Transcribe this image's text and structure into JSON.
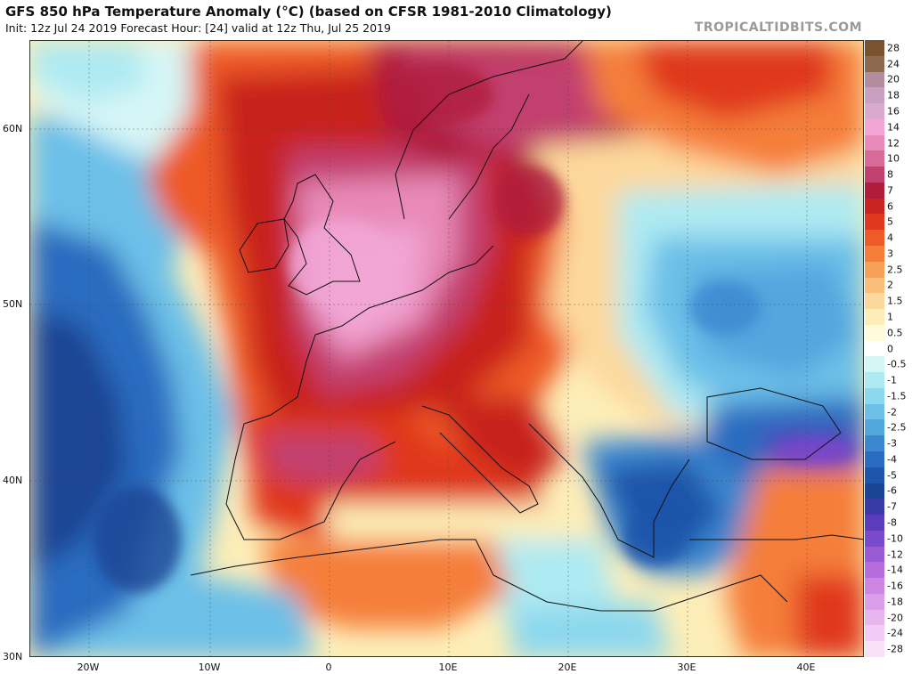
{
  "header": {
    "title": "GFS 850 hPa Temperature Anomaly (°C) (based on CFSR 1981-2010 Climatology)",
    "subtitle": "Init: 12z Jul 24 2019   Forecast Hour: [24]   valid at 12z Thu, Jul 25 2019",
    "brand": "TROPICALTIDBITS.COM"
  },
  "map": {
    "lat_labels": [
      "60N",
      "50N",
      "40N",
      "30N"
    ],
    "lon_labels": [
      "20W",
      "10W",
      "0",
      "10E",
      "20E",
      "30E",
      "40E"
    ]
  },
  "colorbar": {
    "levels": [
      {
        "label": "28",
        "color": "#7a5230"
      },
      {
        "label": "24",
        "color": "#8c6a50"
      },
      {
        "label": "20",
        "color": "#b48ca0"
      },
      {
        "label": "18",
        "color": "#c9a0c0"
      },
      {
        "label": "16",
        "color": "#d9a9d0"
      },
      {
        "label": "14",
        "color": "#f2a6d6"
      },
      {
        "label": "12",
        "color": "#e88ab8"
      },
      {
        "label": "10",
        "color": "#d86a98"
      },
      {
        "label": "8",
        "color": "#c2406e"
      },
      {
        "label": "7",
        "color": "#b01c3c"
      },
      {
        "label": "6",
        "color": "#c8231f"
      },
      {
        "label": "5",
        "color": "#e0381f"
      },
      {
        "label": "4",
        "color": "#ee5a28"
      },
      {
        "label": "3",
        "color": "#f57e3a"
      },
      {
        "label": "2.5",
        "color": "#f9a058"
      },
      {
        "label": "2",
        "color": "#fbbe7a"
      },
      {
        "label": "1.5",
        "color": "#fdd89c"
      },
      {
        "label": "1",
        "color": "#fdeeb8"
      },
      {
        "label": "0.5",
        "color": "#fffadc"
      },
      {
        "label": "0",
        "color": "#ffffff"
      },
      {
        "label": "-0.5",
        "color": "#d6f6f6"
      },
      {
        "label": "-1",
        "color": "#aeeaf2"
      },
      {
        "label": "-1.5",
        "color": "#8cd8ee"
      },
      {
        "label": "-2",
        "color": "#6cc0e8"
      },
      {
        "label": "-2.5",
        "color": "#52a6de"
      },
      {
        "label": "-3",
        "color": "#3c88d0"
      },
      {
        "label": "-4",
        "color": "#2a6cc0"
      },
      {
        "label": "-5",
        "color": "#1e54aa"
      },
      {
        "label": "-6",
        "color": "#1a4494"
      },
      {
        "label": "-7",
        "color": "#3a3aa6"
      },
      {
        "label": "-8",
        "color": "#5a3cbc"
      },
      {
        "label": "-10",
        "color": "#7a4acc"
      },
      {
        "label": "-12",
        "color": "#9a5ad4"
      },
      {
        "label": "-14",
        "color": "#b66cdc"
      },
      {
        "label": "-16",
        "color": "#cc86e2"
      },
      {
        "label": "-18",
        "color": "#dc9ee8"
      },
      {
        "label": "-20",
        "color": "#e8b6ee"
      },
      {
        "label": "-24",
        "color": "#f2ccf4"
      },
      {
        "label": "-28",
        "color": "#f8e2f8"
      }
    ]
  }
}
